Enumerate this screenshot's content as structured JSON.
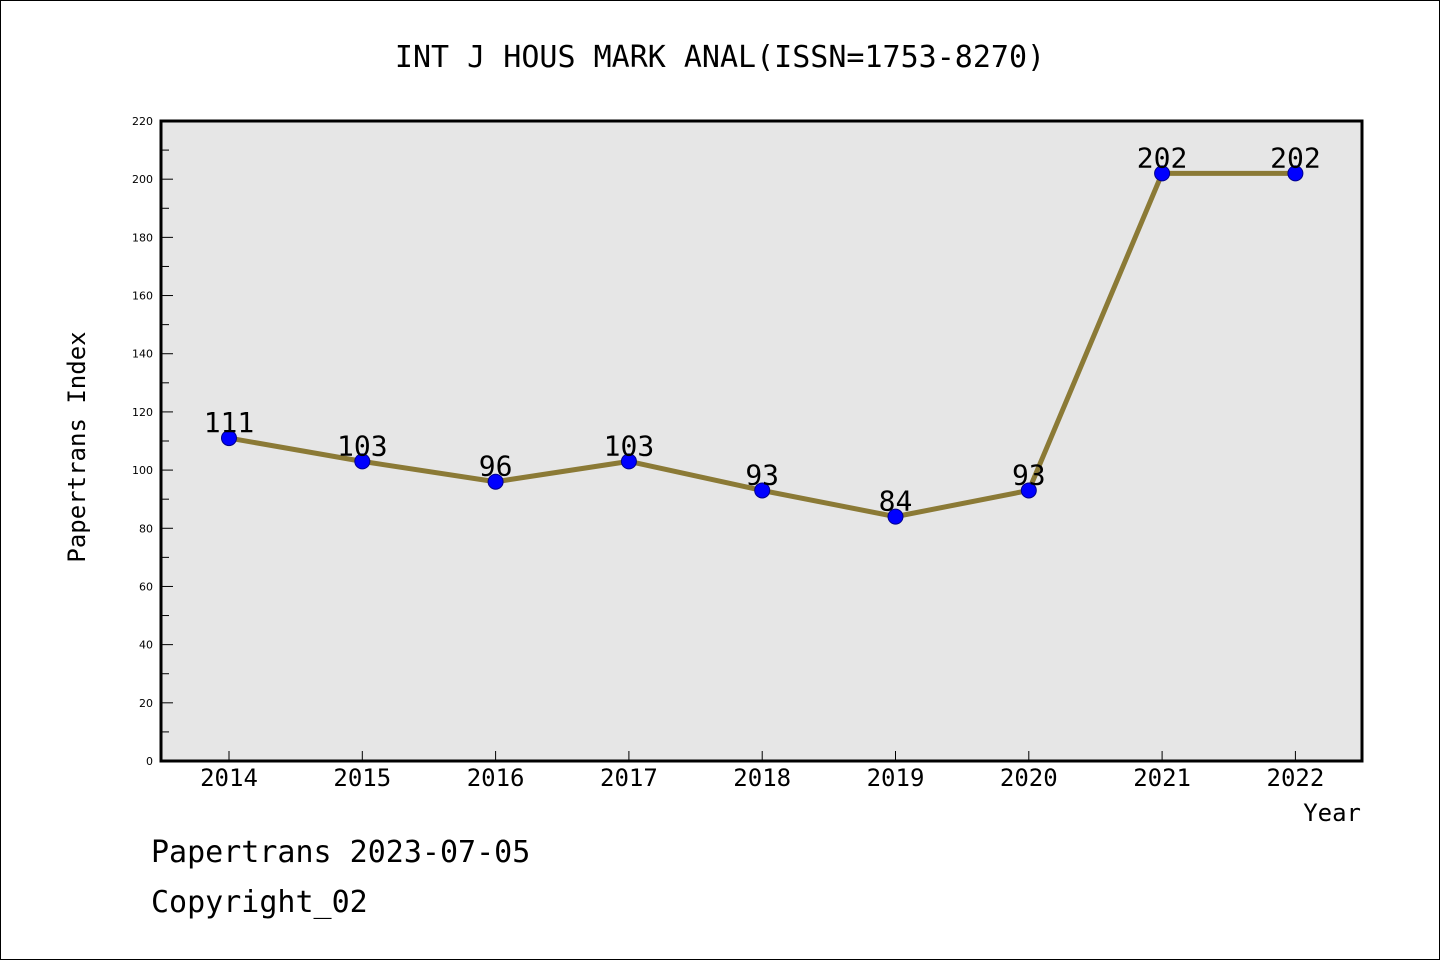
{
  "colors": {
    "background": "#ffffff",
    "plot_background": "#e6e6e6",
    "line": "#8b7a36",
    "marker": "#0000ff",
    "marker_edge": "#00008b",
    "axis": "#000000"
  },
  "chart_data": {
    "type": "line",
    "title": "INT J HOUS MARK ANAL(ISSN=1753-8270)",
    "xlabel": "Year",
    "ylabel": "Papertrans Index",
    "x": [
      "2014",
      "2015",
      "2016",
      "2017",
      "2018",
      "2019",
      "2020",
      "2021",
      "2022"
    ],
    "series": [
      {
        "values": [
          111,
          103,
          96,
          103,
          93,
          84,
          93,
          202,
          202
        ]
      }
    ],
    "data_labels": [
      "111",
      "103",
      "96",
      "103",
      "93",
      "84",
      "93",
      "202",
      "202"
    ],
    "ylim": [
      0,
      220
    ],
    "yticks": [
      0,
      20,
      40,
      60,
      80,
      100,
      120,
      140,
      160,
      180,
      200,
      220
    ],
    "ytick_labels": [
      "0",
      "20",
      "40",
      "60",
      "80",
      "100",
      "120",
      "140",
      "160",
      "180",
      "200",
      "220"
    ],
    "grid": false,
    "legend": "none"
  },
  "footer": {
    "line1": "Papertrans 2023-07-05",
    "line2": "Copyright_02"
  }
}
